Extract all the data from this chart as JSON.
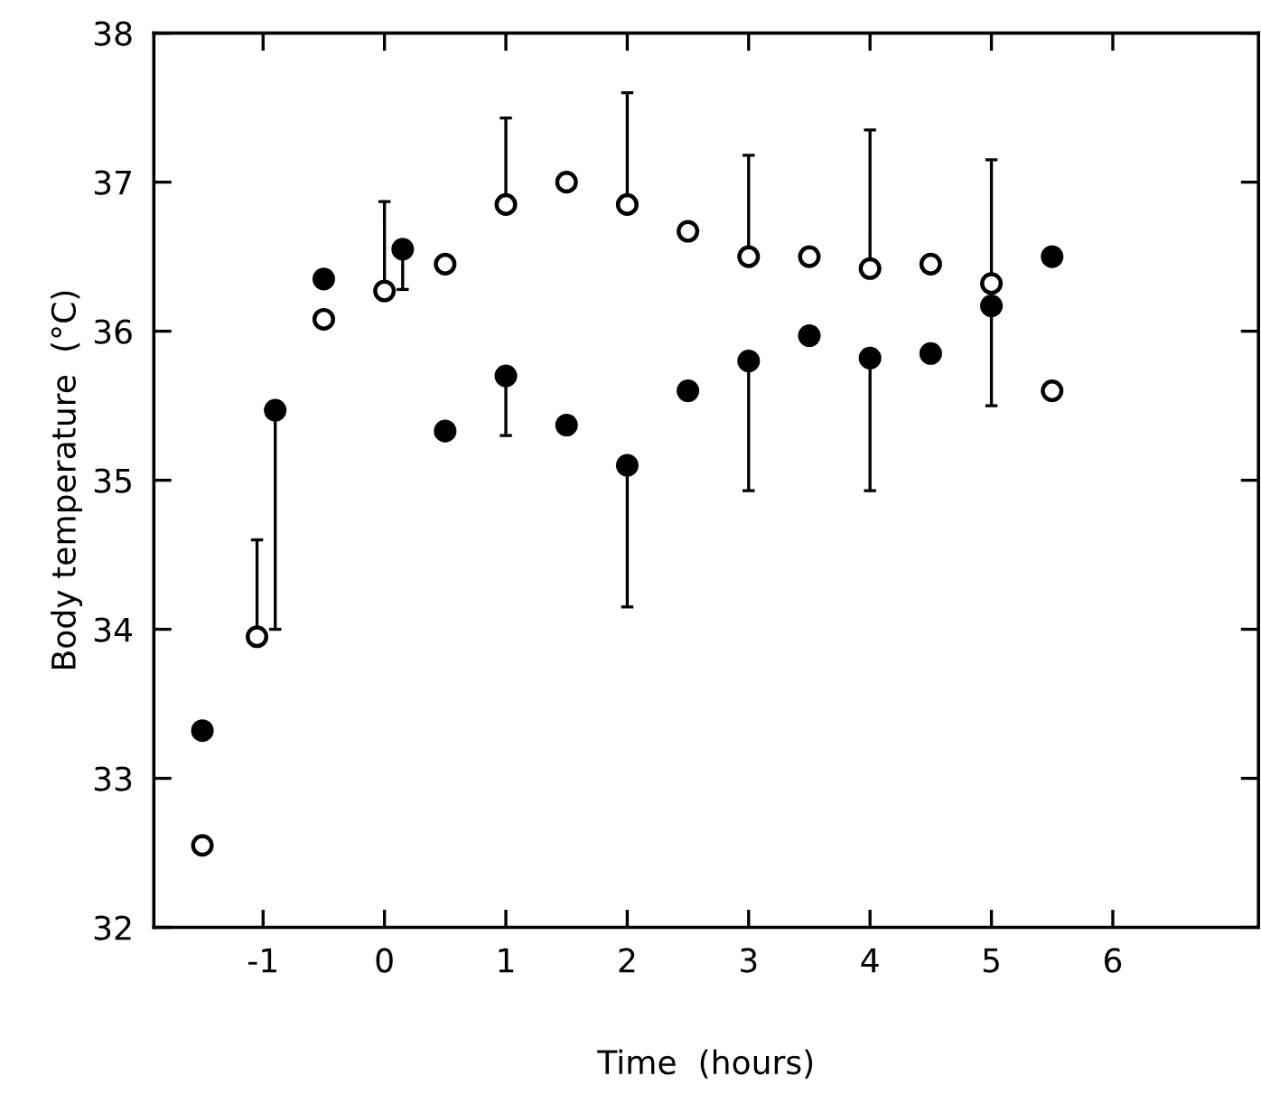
{
  "chart_data": {
    "type": "scatter",
    "xlabel": "Time  (hours)",
    "ylabel": "Body temperature  (°C)",
    "xlim": [
      -1.9,
      7.2
    ],
    "ylim": [
      32,
      38
    ],
    "xticks": [
      -1,
      0,
      1,
      2,
      3,
      4,
      5,
      6
    ],
    "yticks": [
      32,
      33,
      34,
      35,
      36,
      37,
      38
    ],
    "grid": false,
    "legend": false,
    "marker": "circle",
    "series": [
      {
        "color": "#ffffff",
        "x": [
          -1.5,
          -1.05,
          -0.5,
          0,
          0.5,
          1,
          1.5,
          2,
          2.5,
          3,
          3.5,
          4,
          4.5,
          5,
          5.5
        ],
        "values": [
          32.55,
          33.95,
          36.08,
          36.27,
          36.45,
          36.85,
          37.0,
          36.85,
          36.67,
          36.5,
          36.5,
          36.42,
          36.45,
          36.32,
          35.6
        ],
        "errors": [
          null,
          [
            33.95,
            34.6
          ],
          null,
          [
            36.27,
            36.87
          ],
          null,
          [
            36.85,
            37.43
          ],
          null,
          [
            36.85,
            37.6
          ],
          null,
          [
            36.5,
            37.18
          ],
          null,
          [
            36.42,
            37.35
          ],
          null,
          [
            36.32,
            37.15
          ],
          null
        ]
      },
      {
        "color": "#000000",
        "x": [
          -1.5,
          -0.9,
          -0.5,
          0.15,
          0.5,
          1,
          1.5,
          2,
          2.5,
          3,
          3.5,
          4,
          4.5,
          5,
          5.5
        ],
        "values": [
          33.32,
          35.47,
          36.35,
          36.55,
          35.33,
          35.7,
          35.37,
          35.1,
          35.6,
          35.8,
          35.97,
          35.82,
          35.85,
          36.17,
          36.5
        ],
        "errors": [
          null,
          [
            34.0,
            35.47
          ],
          null,
          [
            36.28,
            36.55
          ],
          null,
          [
            35.3,
            35.7
          ],
          null,
          [
            34.15,
            35.1
          ],
          null,
          [
            34.93,
            35.8
          ],
          null,
          [
            34.93,
            35.82
          ],
          null,
          [
            35.5,
            36.17
          ],
          null
        ]
      }
    ]
  }
}
